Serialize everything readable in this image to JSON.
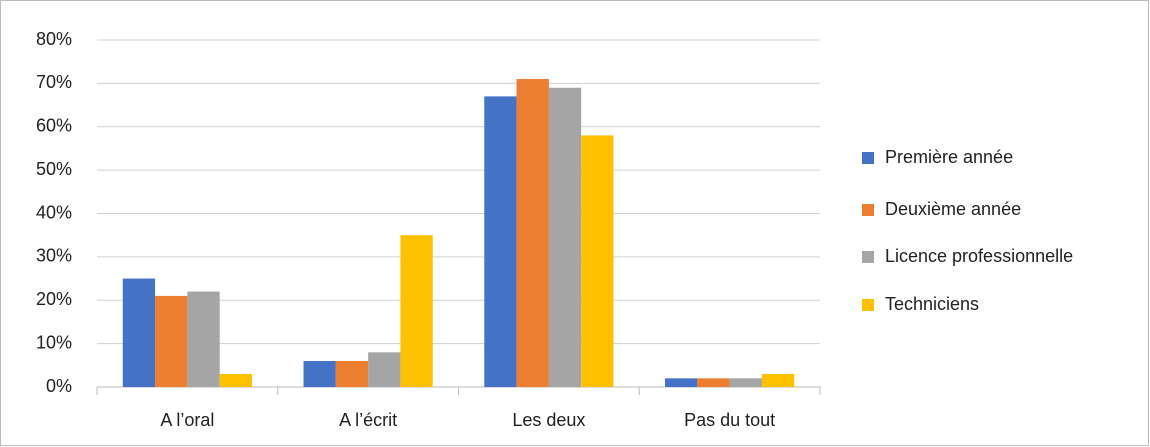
{
  "chart_data": {
    "type": "bar",
    "categories": [
      "A l’oral",
      "A l’écrit",
      "Les deux",
      "Pas du tout"
    ],
    "series": [
      {
        "name": "Première année",
        "color": "#4472c4",
        "values": [
          25,
          6,
          67,
          2
        ]
      },
      {
        "name": "Deuxième année",
        "color": "#ed7d31",
        "values": [
          21,
          6,
          71,
          2
        ]
      },
      {
        "name": "Licence professionnelle",
        "color": "#a5a5a5",
        "values": [
          22,
          8,
          69,
          2
        ]
      },
      {
        "name": "Techniciens",
        "color": "#ffc000",
        "values": [
          3,
          35,
          58,
          3
        ]
      }
    ],
    "ylim": [
      0,
      80
    ],
    "yticks": [
      {
        "value": 0,
        "label": "0%"
      },
      {
        "value": 10,
        "label": "10%"
      },
      {
        "value": 20,
        "label": "20%"
      },
      {
        "value": 30,
        "label": "30%"
      },
      {
        "value": 40,
        "label": "40%"
      },
      {
        "value": 50,
        "label": "50%"
      },
      {
        "value": 60,
        "label": "60%"
      },
      {
        "value": 70,
        "label": "70%"
      },
      {
        "value": 80,
        "label": "80%"
      }
    ],
    "grid": true,
    "legend": "right"
  }
}
